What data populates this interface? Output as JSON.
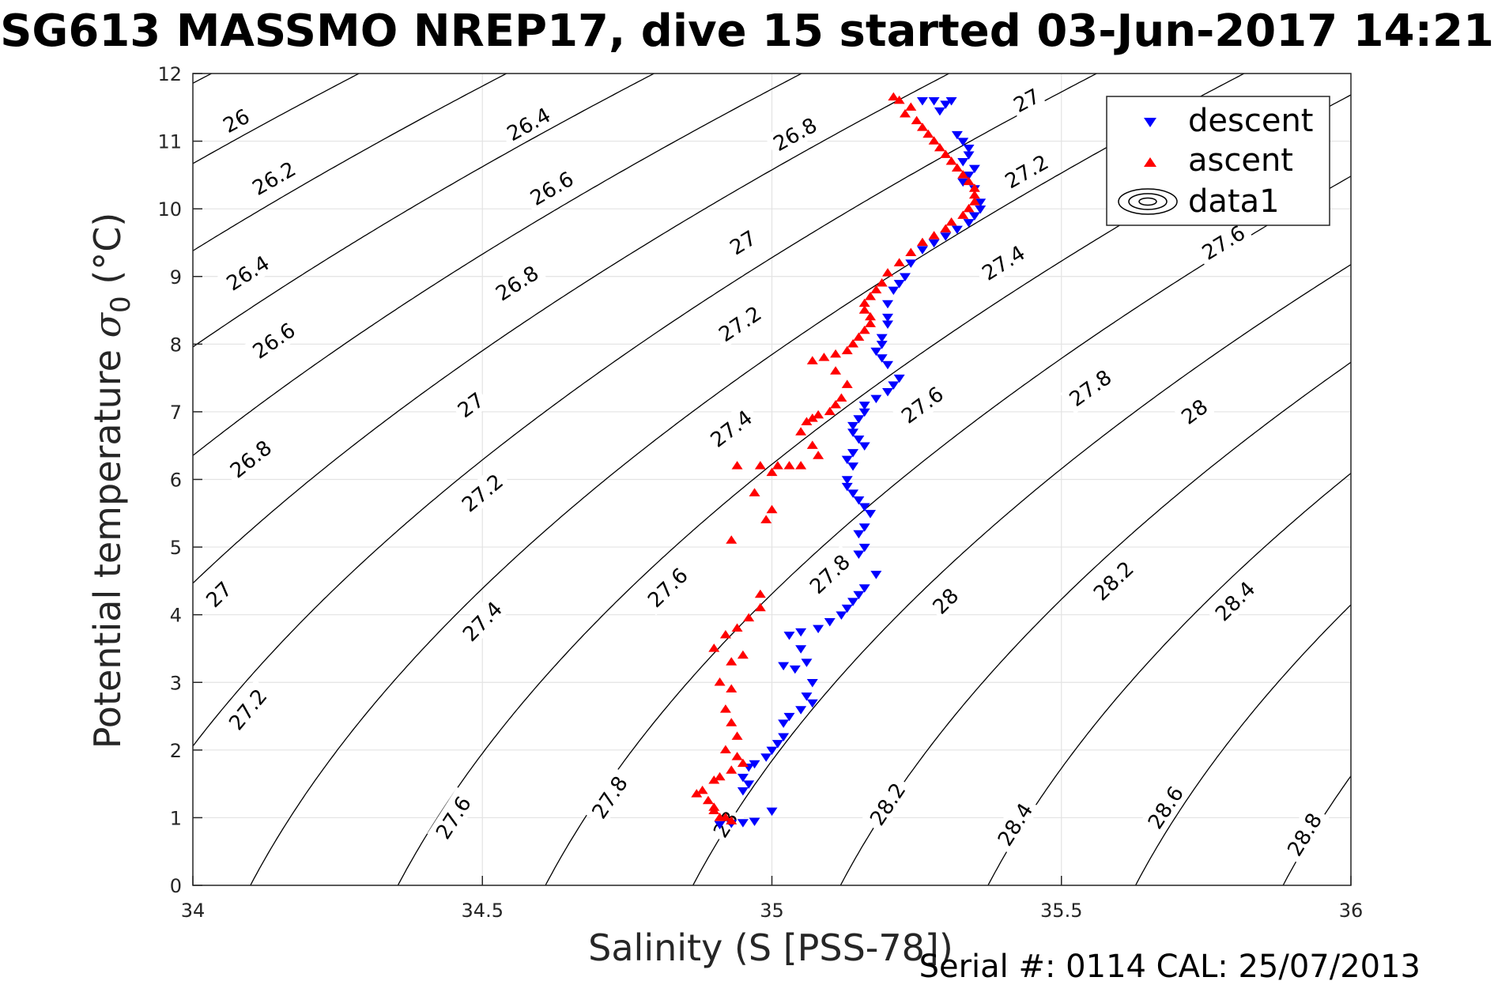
{
  "chart_data": {
    "type": "scatter",
    "title": "SG613 MASSMO NREP17, dive 15 started 03-Jun-2017 14:21",
    "xlabel": "Salinity (S [PSS-78])",
    "ylabel_main": "Potential temperature ",
    "ylabel_sigma": "σ",
    "ylabel_sub": "0",
    "ylabel_unit": " (°C)",
    "footer": "Serial #: 0114  CAL: 25/07/2013",
    "xlim": [
      34,
      36
    ],
    "ylim": [
      0,
      12
    ],
    "x_ticks": [
      34,
      34.5,
      35,
      35.5,
      36
    ],
    "x_tick_labels": [
      "34",
      "34.5",
      "35",
      "35.5",
      "36"
    ],
    "y_ticks": [
      0,
      1,
      2,
      3,
      4,
      5,
      6,
      7,
      8,
      9,
      10,
      11,
      12
    ],
    "y_tick_labels": [
      "0",
      "1",
      "2",
      "3",
      "4",
      "5",
      "6",
      "7",
      "8",
      "9",
      "10",
      "11",
      "12"
    ],
    "grid": true,
    "legend": {
      "position": "top-right",
      "entries": [
        {
          "label": "descent",
          "color": "#0000ff",
          "marker": "triangle-down"
        },
        {
          "label": "ascent",
          "color": "#ff0000",
          "marker": "triangle-up"
        },
        {
          "label": "data1",
          "color": "#000000",
          "marker": "contour"
        }
      ]
    },
    "contours": {
      "levels": [
        26,
        26.2,
        26.4,
        26.6,
        26.8,
        27,
        27.2,
        27.4,
        27.6,
        27.8,
        28,
        28.2,
        28.4,
        28.6,
        28.8
      ],
      "labels": [
        {
          "text": "26",
          "s": 34.075,
          "t": 11.3
        },
        {
          "text": "26.2",
          "s": 34.14,
          "t": 10.45
        },
        {
          "text": "26.4",
          "s": 34.095,
          "t": 9.05
        },
        {
          "text": "26.6",
          "s": 34.14,
          "t": 8.05
        },
        {
          "text": "26.8",
          "s": 34.1,
          "t": 6.3
        },
        {
          "text": "27",
          "s": 34.045,
          "t": 4.3
        },
        {
          "text": "27.2",
          "s": 34.095,
          "t": 2.6
        },
        {
          "text": "26.4",
          "s": 34.58,
          "t": 11.25
        },
        {
          "text": "26.6",
          "s": 34.62,
          "t": 10.3
        },
        {
          "text": "26.8",
          "s": 34.56,
          "t": 8.9
        },
        {
          "text": "27",
          "s": 34.48,
          "t": 7.1
        },
        {
          "text": "27.2",
          "s": 34.5,
          "t": 5.8
        },
        {
          "text": "27.4",
          "s": 34.5,
          "t": 3.9
        },
        {
          "text": "27.6",
          "s": 34.45,
          "t": 1.0
        },
        {
          "text": "26.8",
          "s": 35.04,
          "t": 11.1
        },
        {
          "text": "27",
          "s": 34.95,
          "t": 9.5
        },
        {
          "text": "27.2",
          "s": 34.945,
          "t": 8.3
        },
        {
          "text": "27.4",
          "s": 34.93,
          "t": 6.75
        },
        {
          "text": "27.6",
          "s": 34.82,
          "t": 4.4
        },
        {
          "text": "27.8",
          "s": 34.72,
          "t": 1.3
        },
        {
          "text": "27",
          "s": 35.44,
          "t": 11.6
        },
        {
          "text": "27.2",
          "s": 35.44,
          "t": 10.55
        },
        {
          "text": "27.4",
          "s": 35.4,
          "t": 9.2
        },
        {
          "text": "27.6",
          "s": 35.26,
          "t": 7.1
        },
        {
          "text": "27.8",
          "s": 35.1,
          "t": 4.6
        },
        {
          "text": "28",
          "s": 34.92,
          "t": 0.9
        },
        {
          "text": "27.6",
          "s": 35.78,
          "t": 9.5
        },
        {
          "text": "27.8",
          "s": 35.55,
          "t": 7.35
        },
        {
          "text": "28",
          "s": 35.3,
          "t": 4.2
        },
        {
          "text": "28.2",
          "s": 35.2,
          "t": 1.2
        },
        {
          "text": "28",
          "s": 35.73,
          "t": 7.0
        },
        {
          "text": "28.2",
          "s": 35.59,
          "t": 4.5
        },
        {
          "text": "28.4",
          "s": 35.42,
          "t": 0.9
        },
        {
          "text": "28.4",
          "s": 35.8,
          "t": 4.2
        },
        {
          "text": "28.6",
          "s": 35.68,
          "t": 1.15
        },
        {
          "text": "28.8",
          "s": 35.92,
          "t": 0.75
        }
      ]
    },
    "series": [
      {
        "name": "descent",
        "marker": "triangle-down",
        "color": "#0000ff",
        "points": [
          [
            35.26,
            11.6
          ],
          [
            35.28,
            11.6
          ],
          [
            35.3,
            11.55
          ],
          [
            35.29,
            11.45
          ],
          [
            35.31,
            11.6
          ],
          [
            35.32,
            11.1
          ],
          [
            35.33,
            11.0
          ],
          [
            35.34,
            10.9
          ],
          [
            35.34,
            10.8
          ],
          [
            35.33,
            10.7
          ],
          [
            35.35,
            10.6
          ],
          [
            35.34,
            10.5
          ],
          [
            35.33,
            10.4
          ],
          [
            35.35,
            10.3
          ],
          [
            35.36,
            10.1
          ],
          [
            35.36,
            10.0
          ],
          [
            35.35,
            9.9
          ],
          [
            35.34,
            9.8
          ],
          [
            35.32,
            9.7
          ],
          [
            35.3,
            9.6
          ],
          [
            35.28,
            9.5
          ],
          [
            35.26,
            9.4
          ],
          [
            35.24,
            9.2
          ],
          [
            35.23,
            9.0
          ],
          [
            35.22,
            8.9
          ],
          [
            35.21,
            8.8
          ],
          [
            35.2,
            8.6
          ],
          [
            35.2,
            8.4
          ],
          [
            35.2,
            8.3
          ],
          [
            35.19,
            8.1
          ],
          [
            35.19,
            8.0
          ],
          [
            35.18,
            7.9
          ],
          [
            35.19,
            7.8
          ],
          [
            35.2,
            7.7
          ],
          [
            35.22,
            7.5
          ],
          [
            35.21,
            7.4
          ],
          [
            35.2,
            7.3
          ],
          [
            35.18,
            7.2
          ],
          [
            35.16,
            7.1
          ],
          [
            35.16,
            7.0
          ],
          [
            35.15,
            6.9
          ],
          [
            35.14,
            6.8
          ],
          [
            35.14,
            6.7
          ],
          [
            35.15,
            6.6
          ],
          [
            35.16,
            6.5
          ],
          [
            35.14,
            6.4
          ],
          [
            35.13,
            6.3
          ],
          [
            35.14,
            6.2
          ],
          [
            35.13,
            6.0
          ],
          [
            35.13,
            5.9
          ],
          [
            35.14,
            5.8
          ],
          [
            35.15,
            5.7
          ],
          [
            35.16,
            5.6
          ],
          [
            35.17,
            5.5
          ],
          [
            35.16,
            5.3
          ],
          [
            35.15,
            5.2
          ],
          [
            35.16,
            5.0
          ],
          [
            35.15,
            4.9
          ],
          [
            35.18,
            4.6
          ],
          [
            35.16,
            4.4
          ],
          [
            35.15,
            4.3
          ],
          [
            35.14,
            4.2
          ],
          [
            35.13,
            4.1
          ],
          [
            35.12,
            4.0
          ],
          [
            35.1,
            3.9
          ],
          [
            35.08,
            3.8
          ],
          [
            35.05,
            3.75
          ],
          [
            35.03,
            3.7
          ],
          [
            35.05,
            3.5
          ],
          [
            35.06,
            3.3
          ],
          [
            35.02,
            3.25
          ],
          [
            35.04,
            3.2
          ],
          [
            35.07,
            3.0
          ],
          [
            35.06,
            2.8
          ],
          [
            35.07,
            2.7
          ],
          [
            35.05,
            2.6
          ],
          [
            35.03,
            2.5
          ],
          [
            35.02,
            2.4
          ],
          [
            35.02,
            2.2
          ],
          [
            35.01,
            2.1
          ],
          [
            35.0,
            2.0
          ],
          [
            34.99,
            1.9
          ],
          [
            34.97,
            1.8
          ],
          [
            34.96,
            1.75
          ],
          [
            34.95,
            1.6
          ],
          [
            34.96,
            1.5
          ],
          [
            34.95,
            1.4
          ],
          [
            35.0,
            1.1
          ],
          [
            34.97,
            0.95
          ],
          [
            34.95,
            0.93
          ],
          [
            34.93,
            0.92
          ],
          [
            34.91,
            0.9
          ]
        ]
      },
      {
        "name": "ascent",
        "marker": "triangle-up",
        "color": "#ff0000",
        "points": [
          [
            35.21,
            11.65
          ],
          [
            35.22,
            11.6
          ],
          [
            35.24,
            11.5
          ],
          [
            35.23,
            11.4
          ],
          [
            35.25,
            11.3
          ],
          [
            35.26,
            11.2
          ],
          [
            35.27,
            11.1
          ],
          [
            35.28,
            11.0
          ],
          [
            35.29,
            10.9
          ],
          [
            35.3,
            10.8
          ],
          [
            35.31,
            10.7
          ],
          [
            35.32,
            10.6
          ],
          [
            35.33,
            10.5
          ],
          [
            35.34,
            10.4
          ],
          [
            35.35,
            10.3
          ],
          [
            35.35,
            10.2
          ],
          [
            35.35,
            10.1
          ],
          [
            35.34,
            10.0
          ],
          [
            35.33,
            9.9
          ],
          [
            35.31,
            9.8
          ],
          [
            35.3,
            9.7
          ],
          [
            35.28,
            9.6
          ],
          [
            35.26,
            9.5
          ],
          [
            35.24,
            9.35
          ],
          [
            35.22,
            9.2
          ],
          [
            35.2,
            9.05
          ],
          [
            35.19,
            8.9
          ],
          [
            35.18,
            8.8
          ],
          [
            35.17,
            8.7
          ],
          [
            35.16,
            8.6
          ],
          [
            35.16,
            8.5
          ],
          [
            35.17,
            8.4
          ],
          [
            35.17,
            8.3
          ],
          [
            35.16,
            8.2
          ],
          [
            35.15,
            8.1
          ],
          [
            35.14,
            8.0
          ],
          [
            35.13,
            7.9
          ],
          [
            35.11,
            7.85
          ],
          [
            35.09,
            7.8
          ],
          [
            35.07,
            7.75
          ],
          [
            35.11,
            7.6
          ],
          [
            35.13,
            7.4
          ],
          [
            35.12,
            7.2
          ],
          [
            35.11,
            7.1
          ],
          [
            35.1,
            7.0
          ],
          [
            35.08,
            6.95
          ],
          [
            35.07,
            6.9
          ],
          [
            35.06,
            6.85
          ],
          [
            35.05,
            6.7
          ],
          [
            35.07,
            6.5
          ],
          [
            35.08,
            6.35
          ],
          [
            35.05,
            6.2
          ],
          [
            35.03,
            6.2
          ],
          [
            35.01,
            6.2
          ],
          [
            34.98,
            6.2
          ],
          [
            35.0,
            6.1
          ],
          [
            34.94,
            6.2
          ],
          [
            34.97,
            5.8
          ],
          [
            35.0,
            5.55
          ],
          [
            34.99,
            5.4
          ],
          [
            34.93,
            5.1
          ],
          [
            34.98,
            4.3
          ],
          [
            34.98,
            4.1
          ],
          [
            34.96,
            3.95
          ],
          [
            34.94,
            3.8
          ],
          [
            34.92,
            3.7
          ],
          [
            34.9,
            3.5
          ],
          [
            34.93,
            3.3
          ],
          [
            34.95,
            3.4
          ],
          [
            34.91,
            3.0
          ],
          [
            34.93,
            2.9
          ],
          [
            34.92,
            2.6
          ],
          [
            34.93,
            2.4
          ],
          [
            34.94,
            2.2
          ],
          [
            34.92,
            2.0
          ],
          [
            34.94,
            1.9
          ],
          [
            34.95,
            1.8
          ],
          [
            34.93,
            1.7
          ],
          [
            34.91,
            1.6
          ],
          [
            34.9,
            1.55
          ],
          [
            34.88,
            1.4
          ],
          [
            34.87,
            1.35
          ],
          [
            34.89,
            1.25
          ],
          [
            34.9,
            1.1
          ],
          [
            34.91,
            1.0
          ],
          [
            34.93,
            0.95
          ],
          [
            34.9,
            1.15
          ],
          [
            34.92,
            1.0
          ]
        ]
      }
    ]
  }
}
